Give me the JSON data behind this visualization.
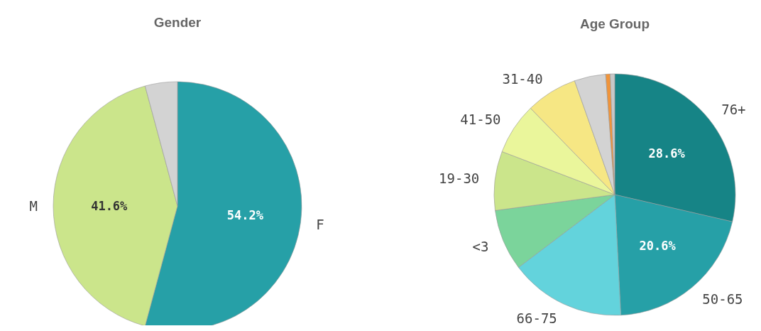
{
  "chart_data": [
    {
      "type": "pie",
      "title": "Gender",
      "categories": [
        "F",
        "M",
        null
      ],
      "values": [
        54.2,
        41.6,
        4.2
      ],
      "colors": [
        "#26a0a7",
        "#cbe58b",
        "#d3d3d3"
      ],
      "value_labels": [
        "54.2%",
        "41.6%",
        null
      ]
    },
    {
      "type": "pie",
      "title": "Age Group",
      "categories": [
        "76+",
        "50-65",
        "66-75",
        "<3",
        "19-30",
        "41-50",
        "31-40",
        null,
        null,
        null
      ],
      "values": [
        28.6,
        20.6,
        15.5,
        8.2,
        7.9,
        6.9,
        6.9,
        4.2,
        0.6,
        0.6
      ],
      "colors": [
        "#168486",
        "#26a0a7",
        "#63d3dc",
        "#7bd49b",
        "#cbe58b",
        "#eaf69b",
        "#f6e784",
        "#d3d3d3",
        "#f0943a",
        "#c8c8c8"
      ],
      "value_labels": [
        "28.6%",
        "20.6%",
        null,
        null,
        null,
        null,
        null,
        null,
        null,
        null
      ]
    }
  ]
}
